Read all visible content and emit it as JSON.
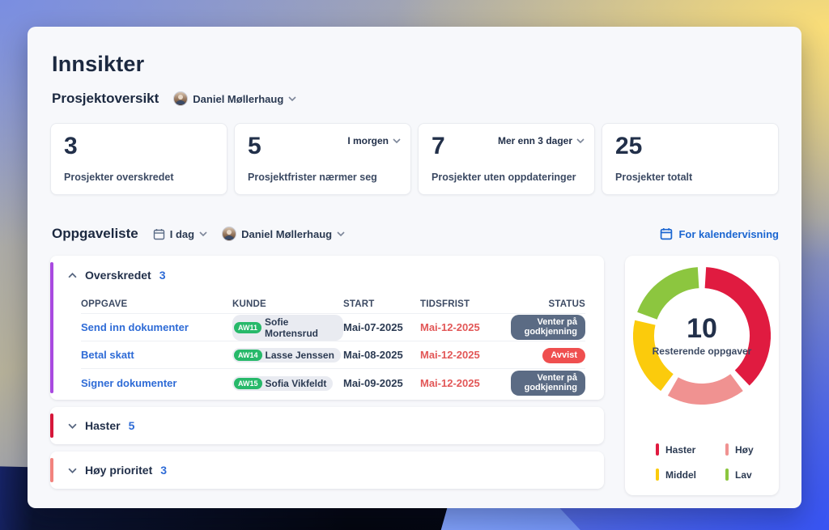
{
  "page": {
    "title": "Innsikter"
  },
  "overview": {
    "title": "Prosjektoversikt",
    "user": "Daniel Møllerhaug",
    "cards": [
      {
        "value": "3",
        "label": "Prosjekter overskredet",
        "filter": null
      },
      {
        "value": "5",
        "label": "Prosjektfrister nærmer seg",
        "filter": "I morgen"
      },
      {
        "value": "7",
        "label": "Prosjekter uten oppdateringer",
        "filter": "Mer enn 3 dager"
      },
      {
        "value": "25",
        "label": "Prosjekter totalt",
        "filter": null
      }
    ]
  },
  "tasklist": {
    "title": "Oppgaveliste",
    "date_filter": "I dag",
    "user_filter": "Daniel Møllerhaug",
    "calendar_link": "For kalendervisning",
    "columns": [
      "OPPGAVE",
      "KUNDE",
      "START",
      "TIDSFRIST",
      "STATUS"
    ],
    "groups": [
      {
        "name": "Overskredet",
        "count": "3",
        "accent": "#a94ae0",
        "expanded": true,
        "rows": [
          {
            "task": "Send inn dokumenter",
            "badge": "AW11",
            "kunde": "Sofie Mortensrud",
            "start": "Mai-07-2025",
            "tidsfrist": "Mai-12-2025",
            "status": "Venter på godkjenning",
            "status_type": "pending"
          },
          {
            "task": "Betal skatt",
            "badge": "AW14",
            "kunde": "Lasse Jenssen",
            "start": "Mai-08-2025",
            "tidsfrist": "Mai-12-2025",
            "status": "Avvist",
            "status_type": "rejected"
          },
          {
            "task": "Signer dokumenter",
            "badge": "AW15",
            "kunde": "Sofia Vikfeldt",
            "start": "Mai-09-2025",
            "tidsfrist": "Mai-12-2025",
            "status": "Venter på godkjenning",
            "status_type": "pending"
          }
        ]
      },
      {
        "name": "Haster",
        "count": "5",
        "accent": "#d6173a",
        "expanded": false,
        "rows": []
      },
      {
        "name": "Høy prioritet",
        "count": "3",
        "accent": "#f2837e",
        "expanded": false,
        "rows": []
      }
    ],
    "status_colors": {
      "pending": "#5b6b84",
      "rejected": "#ef4f4f"
    }
  },
  "chart_data": {
    "type": "pie",
    "subtype": "donut",
    "center_value": "10",
    "center_label": "Resterende oppgaver",
    "categories": [
      "Haster",
      "Høy",
      "Middel",
      "Lav"
    ],
    "values": [
      4,
      2,
      2,
      2
    ],
    "colors": [
      "#e01b40",
      "#f09291",
      "#fbcb0c",
      "#8cc63f"
    ],
    "legend_position": "bottom",
    "start_angle_deg": 3.5,
    "gap_deg": 7
  }
}
